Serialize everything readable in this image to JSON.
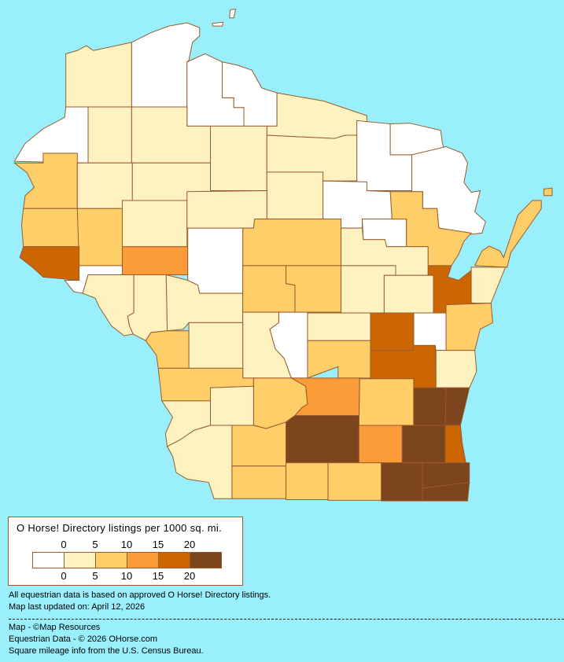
{
  "legend": {
    "title": "O Horse! Directory listings per 1000 sq. mi.",
    "ticks_top": [
      "0",
      "5",
      "10",
      "15",
      "20"
    ],
    "ticks_bottom": [
      "0",
      "5",
      "10",
      "15",
      "20"
    ],
    "bin_colors": [
      "#FFFFFF",
      "#FEF3C0",
      "#FECE69",
      "#FC9C38",
      "#CC6602",
      "#7C451D"
    ]
  },
  "map": {
    "background_color": "#99F0FC",
    "border_color": "#9A5B2C",
    "county_levels": [
      1,
      0,
      0,
      0,
      1,
      0,
      0,
      0,
      0,
      1,
      1,
      1,
      1,
      2,
      1,
      1,
      1,
      0,
      0,
      2,
      2,
      1,
      4,
      2,
      2,
      1,
      1,
      2,
      1,
      4,
      3,
      0,
      0,
      1,
      1,
      1,
      2,
      2,
      1,
      1,
      2,
      0,
      4,
      4,
      1,
      1,
      2,
      0,
      1,
      1,
      2,
      2,
      2,
      3,
      2,
      5,
      5,
      1,
      1,
      1,
      2,
      5,
      3,
      5,
      4,
      2,
      2,
      2,
      5,
      5,
      5,
      0,
      0,
      2
    ]
  },
  "notes": {
    "line1": "All equestrian data is based on approved O Horse! Directory listings.",
    "line2": "Map last updated on: April 12, 2026"
  },
  "credits": {
    "map": "Map - ©Map Resources",
    "data": "Equestrian Data - © 2026 OHorse.com",
    "census": "Square mileage info from the U.S. Census Bureau."
  }
}
